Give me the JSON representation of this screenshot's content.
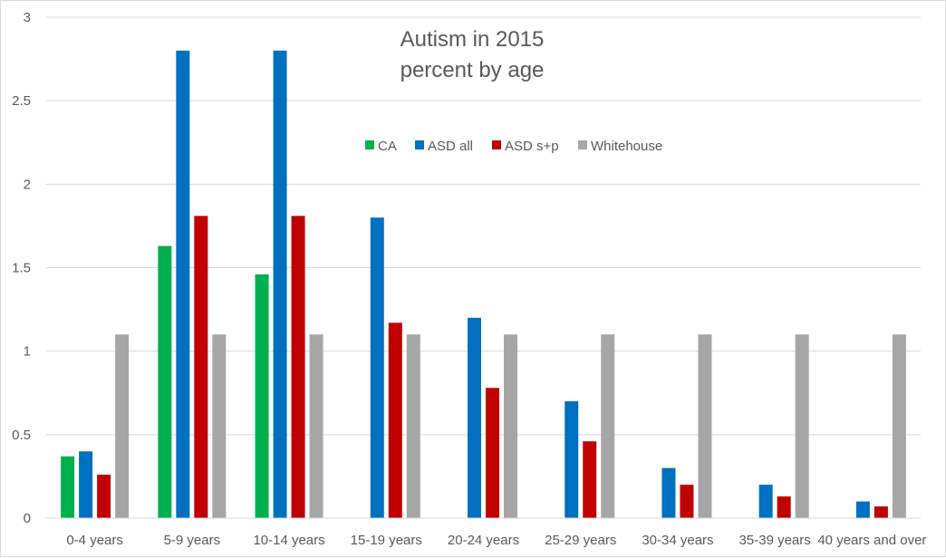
{
  "chart_data": {
    "type": "bar",
    "title_lines": [
      "Autism in 2015",
      "percent by age"
    ],
    "categories": [
      "0-4 years",
      "5-9 years",
      "10-14 years",
      "15-19 years",
      "20-24 years",
      "25-29 years",
      "30-34 years",
      "35-39 years",
      "40 years and over"
    ],
    "series": [
      {
        "name": "CA",
        "color": "#00b050",
        "values": [
          0.37,
          1.63,
          1.46,
          null,
          null,
          null,
          null,
          null,
          null
        ]
      },
      {
        "name": "ASD all",
        "color": "#0070c0",
        "values": [
          0.4,
          2.8,
          2.8,
          1.8,
          1.2,
          0.7,
          0.3,
          0.2,
          0.1
        ]
      },
      {
        "name": "ASD s+p",
        "color": "#c00000",
        "values": [
          0.26,
          1.81,
          1.81,
          1.17,
          0.78,
          0.46,
          0.2,
          0.13,
          0.07
        ]
      },
      {
        "name": "Whitehouse",
        "color": "#a6a6a6",
        "values": [
          1.1,
          1.1,
          1.1,
          1.1,
          1.1,
          1.1,
          1.1,
          1.1,
          1.1
        ]
      }
    ],
    "y_ticks": [
      "0",
      "0.5",
      "1",
      "1.5",
      "2",
      "2.5",
      "3"
    ],
    "ylim": [
      0,
      3
    ],
    "grid": true,
    "legend_position": "top-center"
  }
}
